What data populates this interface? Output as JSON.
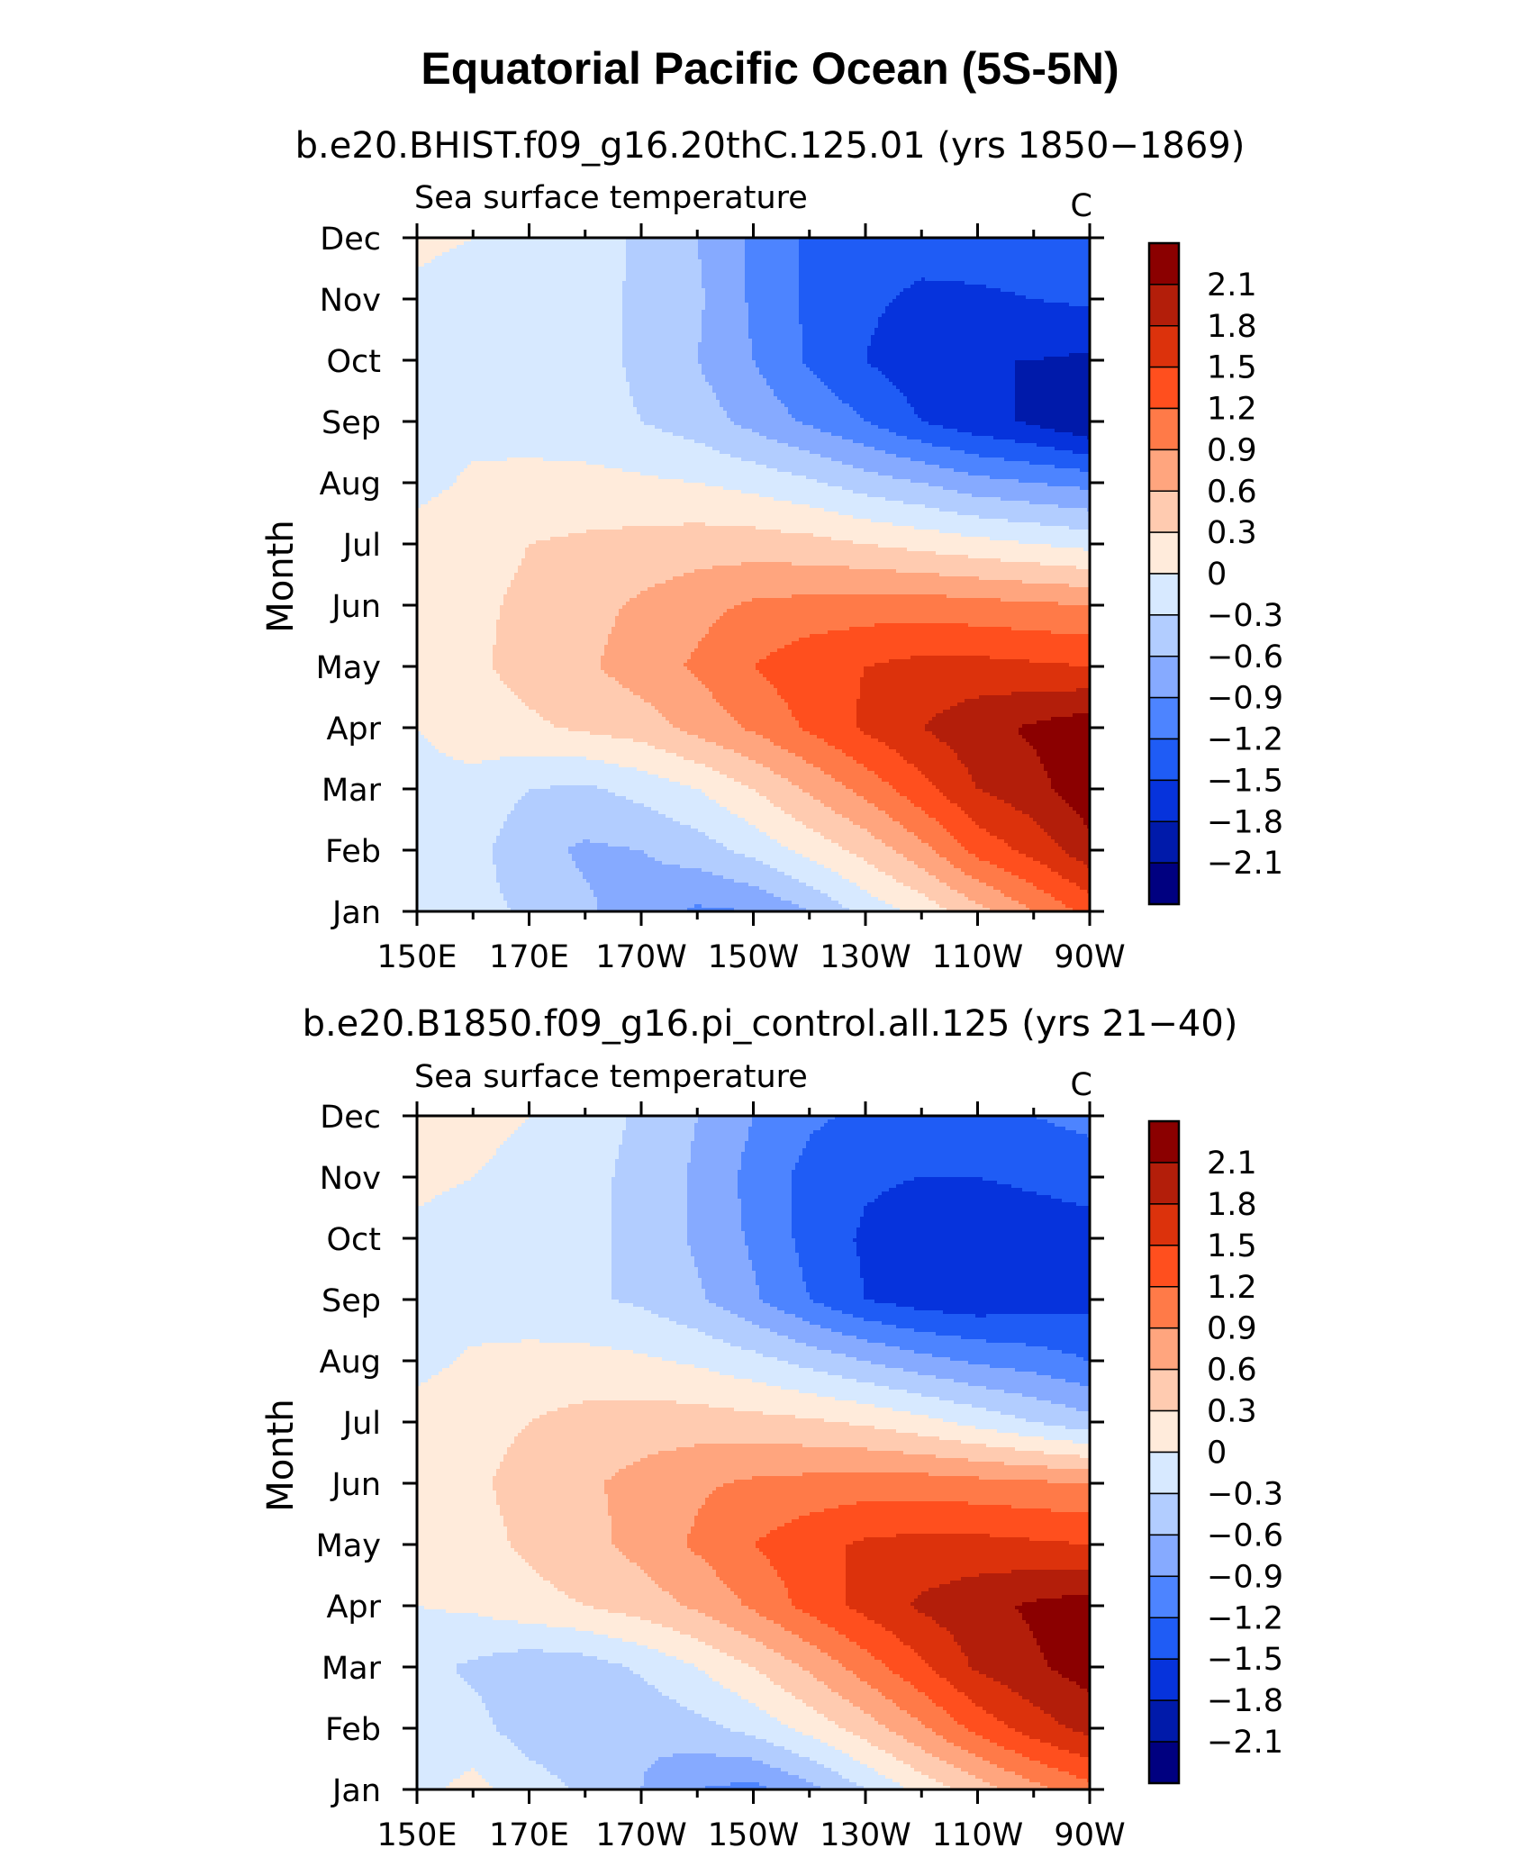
{
  "figure": {
    "title": "Equatorial Pacific Ocean (5S-5N)"
  },
  "chart_data": [
    {
      "type": "heatmap",
      "title": "b.e20.BHIST.f09_g16.20thC.125.01 (yrs 1850−1869)",
      "subtitle_left": "Sea surface temperature",
      "subtitle_right": "C",
      "ylabel": "Month",
      "xlabel": "",
      "x_tick_labels": [
        "150E",
        "170E",
        "170W",
        "150W",
        "130W",
        "110W",
        "90W"
      ],
      "x_ticks": [
        150,
        170,
        190,
        210,
        230,
        250,
        270
      ],
      "xlim": [
        150,
        270
      ],
      "y_tick_labels": [
        "Jan",
        "Feb",
        "Mar",
        "Apr",
        "May",
        "Jun",
        "Jul",
        "Aug",
        "Sep",
        "Oct",
        "Nov",
        "Dec"
      ],
      "grid": false,
      "colorbar": {
        "placement": "right",
        "levels": [
          "2.1",
          "1.8",
          "1.5",
          "1.2",
          "0.9",
          "0.6",
          "0.3",
          "0",
          "−0.3",
          "−0.6",
          "−0.9",
          "−1.2",
          "−1.5",
          "−1.8",
          "−2.1"
        ],
        "colors": [
          "#8b0000",
          "#b31e0a",
          "#dc320c",
          "#ff4f1e",
          "#ff7a48",
          "#ffa57e",
          "#ffcbb0",
          "#ffebdb",
          "#d7e9ff",
          "#b2cdff",
          "#86aaff",
          "#4d84ff",
          "#1f5cf5",
          "#0633dc",
          "#001aaa",
          "#000080"
        ]
      },
      "x": [
        150,
        160,
        170,
        180,
        190,
        200,
        210,
        220,
        230,
        240,
        250,
        260,
        270
      ],
      "z": [
        [
          -0.15,
          -0.2,
          -0.35,
          -0.55,
          -0.75,
          -0.95,
          -0.9,
          -0.6,
          -0.2,
          0.1,
          0.5,
          0.9,
          1.3
        ],
        [
          -0.15,
          -0.2,
          -0.5,
          -0.65,
          -0.6,
          -0.45,
          -0.2,
          0.1,
          0.4,
          0.8,
          1.3,
          1.6,
          2.0
        ],
        [
          -0.1,
          -0.1,
          -0.3,
          -0.35,
          -0.2,
          0.0,
          0.3,
          0.65,
          1.0,
          1.4,
          1.8,
          2.0,
          2.3
        ],
        [
          0.0,
          0.15,
          0.25,
          0.35,
          0.45,
          0.7,
          0.95,
          1.25,
          1.55,
          1.8,
          2.0,
          2.15,
          2.3
        ],
        [
          0.1,
          0.25,
          0.4,
          0.55,
          0.75,
          0.95,
          1.2,
          1.4,
          1.5,
          1.6,
          1.6,
          1.55,
          1.5
        ],
        [
          0.15,
          0.25,
          0.35,
          0.5,
          0.65,
          0.8,
          0.95,
          1.0,
          1.05,
          1.05,
          1.0,
          0.95,
          0.9
        ],
        [
          0.15,
          0.2,
          0.3,
          0.35,
          0.4,
          0.45,
          0.45,
          0.4,
          0.3,
          0.2,
          0.1,
          0.0,
          -0.1
        ],
        [
          -0.1,
          0.05,
          0.1,
          0.1,
          0.05,
          0.0,
          -0.1,
          -0.25,
          -0.45,
          -0.6,
          -0.8,
          -0.9,
          -1.0
        ],
        [
          -0.1,
          -0.1,
          -0.15,
          -0.2,
          -0.3,
          -0.45,
          -0.7,
          -0.95,
          -1.2,
          -1.5,
          -1.7,
          -1.85,
          -2.1
        ],
        [
          -0.1,
          -0.1,
          -0.15,
          -0.2,
          -0.35,
          -0.6,
          -0.9,
          -1.25,
          -1.5,
          -1.7,
          -1.8,
          -1.8,
          -1.85
        ],
        [
          -0.05,
          -0.1,
          -0.15,
          -0.2,
          -0.35,
          -0.55,
          -0.95,
          -1.25,
          -1.45,
          -1.55,
          -1.55,
          -1.5,
          -1.45
        ],
        [
          0.05,
          0.0,
          -0.1,
          -0.15,
          -0.35,
          -0.6,
          -0.95,
          -1.25,
          -1.35,
          -1.4,
          -1.35,
          -1.3,
          -1.25
        ]
      ]
    },
    {
      "type": "heatmap",
      "title": "b.e20.B1850.f09_g16.pi_control.all.125 (yrs 21−40)",
      "subtitle_left": "Sea surface temperature",
      "subtitle_right": "C",
      "ylabel": "Month",
      "xlabel": "",
      "x_tick_labels": [
        "150E",
        "170E",
        "170W",
        "150W",
        "130W",
        "110W",
        "90W"
      ],
      "x_ticks": [
        150,
        170,
        190,
        210,
        230,
        250,
        270
      ],
      "xlim": [
        150,
        270
      ],
      "y_tick_labels": [
        "Jan",
        "Feb",
        "Mar",
        "Apr",
        "May",
        "Jun",
        "Jul",
        "Aug",
        "Sep",
        "Oct",
        "Nov",
        "Dec"
      ],
      "grid": false,
      "colorbar": {
        "placement": "right",
        "levels": [
          "2.1",
          "1.8",
          "1.5",
          "1.2",
          "0.9",
          "0.6",
          "0.3",
          "0",
          "−0.3",
          "−0.6",
          "−0.9",
          "−1.2",
          "−1.5",
          "−1.8",
          "−2.1"
        ],
        "colors": [
          "#8b0000",
          "#b31e0a",
          "#dc320c",
          "#ff4f1e",
          "#ff7a48",
          "#ffa57e",
          "#ffcbb0",
          "#ffebdb",
          "#d7e9ff",
          "#b2cdff",
          "#86aaff",
          "#4d84ff",
          "#1f5cf5",
          "#0633dc",
          "#001aaa",
          "#000080"
        ]
      },
      "x": [
        150,
        160,
        170,
        180,
        190,
        200,
        210,
        220,
        230,
        240,
        250,
        260,
        270
      ],
      "z": [
        [
          -0.1,
          0.1,
          -0.15,
          -0.35,
          -0.6,
          -0.9,
          -1.0,
          -0.7,
          -0.3,
          0.1,
          0.45,
          0.8,
          1.1
        ],
        [
          -0.2,
          -0.2,
          -0.45,
          -0.55,
          -0.55,
          -0.4,
          -0.2,
          0.1,
          0.45,
          0.85,
          1.3,
          1.65,
          1.9
        ],
        [
          -0.2,
          -0.35,
          -0.5,
          -0.45,
          -0.25,
          0.0,
          0.3,
          0.65,
          1.05,
          1.45,
          1.85,
          2.05,
          2.25
        ],
        [
          0.0,
          0.05,
          0.2,
          0.3,
          0.45,
          0.65,
          0.95,
          1.3,
          1.6,
          1.85,
          2.0,
          2.15,
          2.25
        ],
        [
          0.1,
          0.2,
          0.35,
          0.5,
          0.7,
          0.95,
          1.2,
          1.4,
          1.55,
          1.6,
          1.6,
          1.55,
          1.5
        ],
        [
          0.15,
          0.25,
          0.4,
          0.55,
          0.7,
          0.85,
          0.95,
          1.0,
          1.05,
          1.05,
          1.0,
          0.95,
          0.9
        ],
        [
          0.15,
          0.2,
          0.3,
          0.4,
          0.45,
          0.45,
          0.4,
          0.35,
          0.25,
          0.1,
          -0.1,
          -0.3,
          -0.5
        ],
        [
          -0.1,
          0.05,
          0.1,
          0.1,
          0.05,
          -0.05,
          -0.2,
          -0.4,
          -0.6,
          -0.8,
          -0.95,
          -1.05,
          -1.2
        ],
        [
          -0.1,
          -0.15,
          -0.2,
          -0.25,
          -0.35,
          -0.55,
          -0.85,
          -1.2,
          -1.5,
          -1.65,
          -1.7,
          -1.65,
          -1.6
        ],
        [
          -0.05,
          -0.1,
          -0.15,
          -0.2,
          -0.4,
          -0.65,
          -0.95,
          -1.3,
          -1.55,
          -1.7,
          -1.7,
          -1.65,
          -1.6
        ],
        [
          0.05,
          0.0,
          -0.1,
          -0.2,
          -0.4,
          -0.65,
          -1.0,
          -1.3,
          -1.45,
          -1.5,
          -1.5,
          -1.45,
          -1.4
        ],
        [
          0.1,
          0.1,
          0.0,
          -0.15,
          -0.35,
          -0.6,
          -0.9,
          -1.15,
          -1.25,
          -1.3,
          -1.25,
          -1.2,
          -1.1
        ]
      ]
    }
  ]
}
